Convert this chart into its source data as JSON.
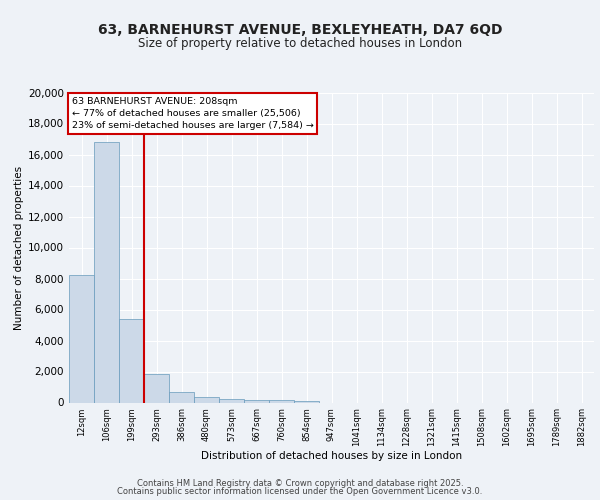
{
  "title_line1": "63, BARNEHURST AVENUE, BEXLEYHEATH, DA7 6QD",
  "title_line2": "Size of property relative to detached houses in London",
  "xlabel": "Distribution of detached houses by size in London",
  "ylabel": "Number of detached properties",
  "categories": [
    "12sqm",
    "106sqm",
    "199sqm",
    "293sqm",
    "386sqm",
    "480sqm",
    "573sqm",
    "667sqm",
    "760sqm",
    "854sqm",
    "947sqm",
    "1041sqm",
    "1134sqm",
    "1228sqm",
    "1321sqm",
    "1415sqm",
    "1508sqm",
    "1602sqm",
    "1695sqm",
    "1789sqm",
    "1882sqm"
  ],
  "values": [
    8200,
    16800,
    5400,
    1850,
    700,
    350,
    220,
    160,
    130,
    100,
    0,
    0,
    0,
    0,
    0,
    0,
    0,
    0,
    0,
    0,
    0
  ],
  "bar_color": "#ccd9e8",
  "bar_edgecolor": "#6699bb",
  "redline_index": 2,
  "annotation_title": "63 BARNEHURST AVENUE: 208sqm",
  "annotation_line2": "← 77% of detached houses are smaller (25,506)",
  "annotation_line3": "23% of semi-detached houses are larger (7,584) →",
  "annotation_box_color": "#cc0000",
  "ylim": [
    0,
    20000
  ],
  "yticks": [
    0,
    2000,
    4000,
    6000,
    8000,
    10000,
    12000,
    14000,
    16000,
    18000,
    20000
  ],
  "background_color": "#eef2f7",
  "grid_color": "#ffffff",
  "footer_line1": "Contains HM Land Registry data © Crown copyright and database right 2025.",
  "footer_line2": "Contains public sector information licensed under the Open Government Licence v3.0."
}
